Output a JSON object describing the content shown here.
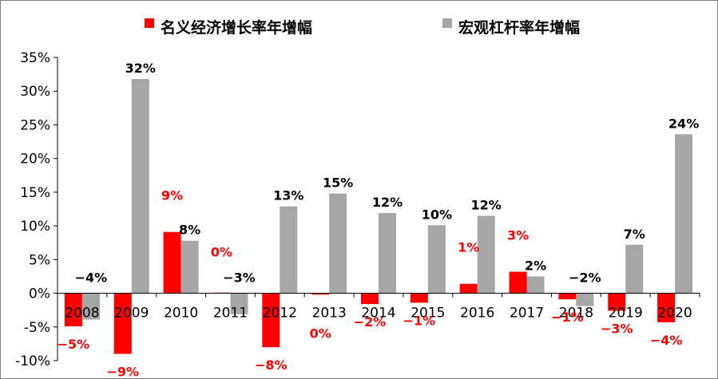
{
  "chart_data": {
    "type": "bar",
    "categories": [
      "2008",
      "2009",
      "2010",
      "2011",
      "2012",
      "2013",
      "2014",
      "2015",
      "2016",
      "2017",
      "2018",
      "2019",
      "2020"
    ],
    "series": [
      {
        "name": "名义经济增长率年增幅",
        "color": "#ff0000",
        "values": [
          -4.9,
          -9.0,
          9.1,
          0.1,
          -8.0,
          -0.2,
          -1.6,
          -1.4,
          1.4,
          3.2,
          -0.9,
          -2.6,
          -4.3
        ],
        "labels": [
          "−5%",
          "−9%",
          "9%",
          "0%",
          "−8%",
          "0%",
          "−2%",
          "−1%",
          "1%",
          "3%",
          "−1%",
          "−3%",
          "−4%"
        ]
      },
      {
        "name": "宏观杠杆率年增幅",
        "color": "#a6a6a6",
        "values": [
          -3.9,
          31.8,
          7.8,
          -3.1,
          12.9,
          14.8,
          11.9,
          10.1,
          11.5,
          2.5,
          -1.9,
          7.2,
          23.6
        ],
        "labels": [
          "−4%",
          "32%",
          "8%",
          "−3%",
          "13%",
          "15%",
          "12%",
          "10%",
          "12%",
          "2%",
          "−2%",
          "7%",
          "24%"
        ]
      }
    ],
    "yticks": [
      "35%",
      "30%",
      "25%",
      "20%",
      "15%",
      "10%",
      "5%",
      "0%",
      "-5%",
      "-10%"
    ],
    "ylim": [
      -10,
      35
    ],
    "legend": "top",
    "grid": false
  }
}
